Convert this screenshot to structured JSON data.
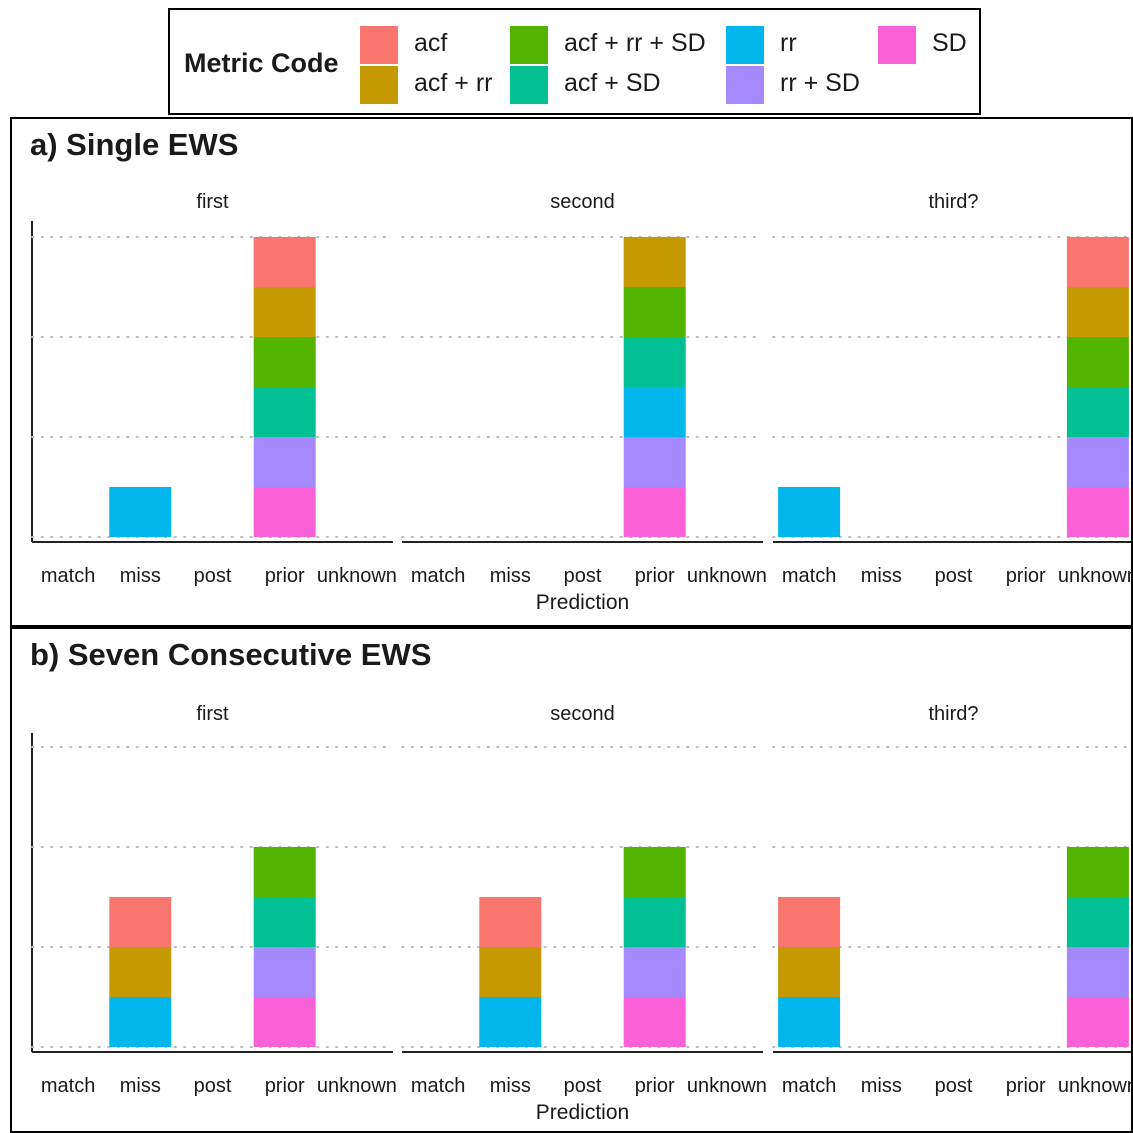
{
  "legend": {
    "title": "Metric Code",
    "items": [
      {
        "label": "acf",
        "color": "#F8766D"
      },
      {
        "label": "acf + rr",
        "color": "#C49A00"
      },
      {
        "label": "acf + rr + SD",
        "color": "#53B400"
      },
      {
        "label": "acf + SD",
        "color": "#00C094"
      },
      {
        "label": "rr",
        "color": "#00B6EB"
      },
      {
        "label": "rr + SD",
        "color": "#A58AFF"
      },
      {
        "label": "SD",
        "color": "#FB61D7"
      }
    ]
  },
  "chart_data": [
    {
      "type": "bar",
      "title": "a) Single EWS",
      "xlabel": "Prediction",
      "ylabel": "",
      "categories": [
        "match",
        "miss",
        "post",
        "prior",
        "unknown"
      ],
      "ylim": [
        0,
        6
      ],
      "grid": true,
      "facets": [
        {
          "label": "first",
          "stacks": [
            {
              "category": "miss",
              "segments": [
                "rr"
              ]
            },
            {
              "category": "prior",
              "segments": [
                "SD",
                "rr + SD",
                "acf + SD",
                "acf + rr + SD",
                "acf + rr",
                "acf"
              ]
            }
          ]
        },
        {
          "label": "second",
          "stacks": [
            {
              "category": "prior",
              "segments": [
                "SD",
                "rr + SD",
                "rr",
                "acf + SD",
                "acf + rr + SD",
                "acf + rr"
              ]
            }
          ]
        },
        {
          "label": "third?",
          "stacks": [
            {
              "category": "match",
              "segments": [
                "rr"
              ]
            },
            {
              "category": "unknown",
              "segments": [
                "SD",
                "rr + SD",
                "acf + SD",
                "acf + rr + SD",
                "acf + rr",
                "acf"
              ]
            }
          ]
        }
      ]
    },
    {
      "type": "bar",
      "title": "b) Seven Consecutive EWS",
      "xlabel": "Prediction",
      "ylabel": "",
      "categories": [
        "match",
        "miss",
        "post",
        "prior",
        "unknown"
      ],
      "ylim": [
        0,
        6
      ],
      "grid": true,
      "facets": [
        {
          "label": "first",
          "stacks": [
            {
              "category": "miss",
              "segments": [
                "rr",
                "acf + rr",
                "acf"
              ]
            },
            {
              "category": "prior",
              "segments": [
                "SD",
                "rr + SD",
                "acf + SD",
                "acf + rr + SD"
              ]
            }
          ]
        },
        {
          "label": "second",
          "stacks": [
            {
              "category": "miss",
              "segments": [
                "rr",
                "acf + rr",
                "acf"
              ]
            },
            {
              "category": "prior",
              "segments": [
                "SD",
                "rr + SD",
                "acf + SD",
                "acf + rr + SD"
              ]
            }
          ]
        },
        {
          "label": "third?",
          "stacks": [
            {
              "category": "match",
              "segments": [
                "rr",
                "acf + rr",
                "acf"
              ]
            },
            {
              "category": "unknown",
              "segments": [
                "SD",
                "rr + SD",
                "acf + SD",
                "acf + rr + SD"
              ]
            }
          ]
        }
      ]
    }
  ]
}
